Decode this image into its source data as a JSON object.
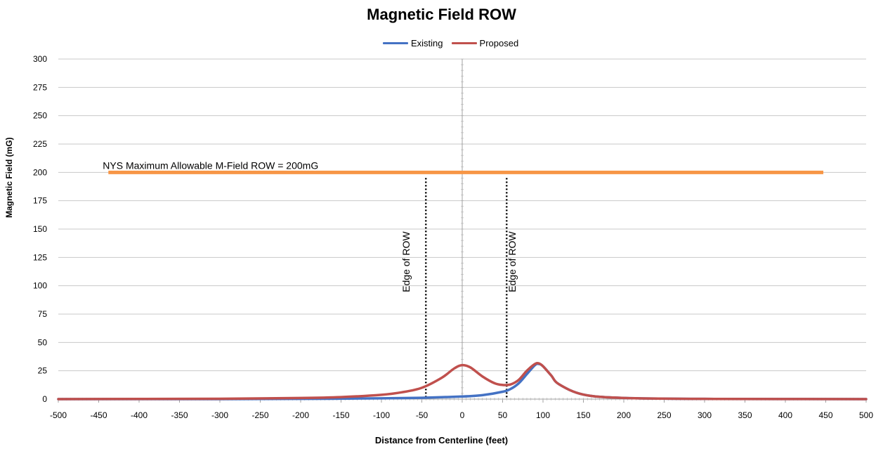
{
  "chart_data": {
    "type": "line",
    "title": "Magnetic Field ROW",
    "xlabel": "Distance from Centerline (feet)",
    "ylabel": "Magnetic Field (mG)",
    "xlim": [
      -500,
      500
    ],
    "ylim": [
      0,
      300
    ],
    "x_ticks": [
      -500,
      -450,
      -400,
      -350,
      -300,
      -250,
      -200,
      -150,
      -100,
      -50,
      0,
      50,
      100,
      150,
      200,
      250,
      300,
      350,
      400,
      450,
      500
    ],
    "y_ticks": [
      0,
      25,
      50,
      75,
      100,
      125,
      150,
      175,
      200,
      225,
      250,
      275,
      300
    ],
    "grid": "horizontal",
    "legend": "top-center",
    "series": [
      {
        "name": "Existing",
        "color": "#4472c4",
        "x": [
          -500,
          -300,
          -200,
          -150,
          -100,
          -50,
          0,
          25,
          50,
          60,
          70,
          80,
          90,
          95,
          100,
          110,
          120,
          150,
          200,
          300,
          500
        ],
        "y": [
          0,
          0,
          0.2,
          0.4,
          0.7,
          1.2,
          2.3,
          3.5,
          6.5,
          9,
          14,
          22,
          30,
          31,
          29,
          21,
          13,
          4,
          1,
          0.2,
          0
        ]
      },
      {
        "name": "Proposed",
        "color": "#c0504d",
        "x": [
          -500,
          -300,
          -200,
          -150,
          -100,
          -75,
          -50,
          -25,
          -10,
          0,
          10,
          25,
          40,
          50,
          60,
          70,
          80,
          90,
          95,
          100,
          110,
          120,
          150,
          200,
          300,
          500
        ],
        "y": [
          0,
          0.3,
          1,
          1.8,
          3.8,
          6,
          10,
          19,
          27,
          30,
          28,
          20,
          14,
          12.5,
          13,
          17,
          25,
          31,
          31.5,
          29,
          21,
          13,
          4,
          1,
          0.2,
          0
        ]
      }
    ],
    "annotations": [
      {
        "name": "limit-line",
        "color": "#f79646",
        "y": 200,
        "x_start": -438,
        "x_end": 447,
        "label": "NYS Maximum Allowable M-Field ROW = 200mG"
      },
      {
        "name": "row-edge-left",
        "x": -45,
        "y_top": 195,
        "label": "Edge of ROW"
      },
      {
        "name": "row-edge-right",
        "x": 55,
        "y_top": 195,
        "label": "Edge of ROW"
      }
    ]
  }
}
